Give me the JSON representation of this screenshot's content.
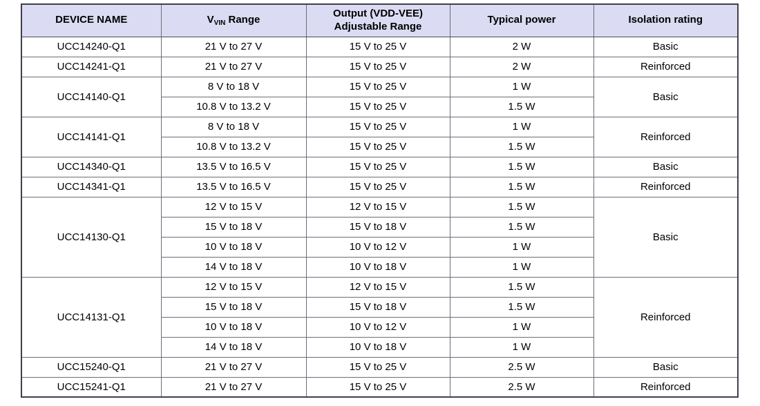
{
  "colors": {
    "header_bg": "#dbdbf3",
    "grid_line": "#6b6b78",
    "outer_border": "#3f3f4a",
    "text": "#000000"
  },
  "table": {
    "headers": {
      "device": "DEVICE NAME",
      "vvin_prefix": "V",
      "vvin_sub": "VIN",
      "vvin_suffix": " Range",
      "output_line1": "Output (VDD-VEE)",
      "output_line2": "Adjustable Range",
      "power": "Typical power",
      "isolation": "Isolation rating"
    },
    "groups": [
      {
        "device": "UCC14240-Q1",
        "isolation": "Basic",
        "rows": [
          {
            "vin": "21 V to 27 V",
            "out": "15 V to 25 V",
            "power": "2 W"
          }
        ]
      },
      {
        "device": "UCC14241-Q1",
        "isolation": "Reinforced",
        "rows": [
          {
            "vin": "21 V to 27 V",
            "out": "15 V to 25 V",
            "power": "2 W"
          }
        ]
      },
      {
        "device": "UCC14140-Q1",
        "isolation": "Basic",
        "rows": [
          {
            "vin": "8 V to 18 V",
            "out": "15 V to 25 V",
            "power": "1 W"
          },
          {
            "vin": "10.8 V to 13.2 V",
            "out": "15 V to 25 V",
            "power": "1.5 W"
          }
        ]
      },
      {
        "device": "UCC14141-Q1",
        "isolation": "Reinforced",
        "rows": [
          {
            "vin": "8 V to 18 V",
            "out": "15 V to 25 V",
            "power": "1 W"
          },
          {
            "vin": "10.8 V to 13.2 V",
            "out": "15 V to 25 V",
            "power": "1.5 W"
          }
        ]
      },
      {
        "device": "UCC14340-Q1",
        "isolation": "Basic",
        "rows": [
          {
            "vin": "13.5 V to 16.5 V",
            "out": "15 V to 25 V",
            "power": "1.5 W"
          }
        ]
      },
      {
        "device": "UCC14341-Q1",
        "isolation": "Reinforced",
        "rows": [
          {
            "vin": "13.5 V to 16.5 V",
            "out": "15 V to 25 V",
            "power": "1.5 W"
          }
        ]
      },
      {
        "device": "UCC14130-Q1",
        "isolation": "Basic",
        "rows": [
          {
            "vin": "12 V to 15 V",
            "out": "12 V to 15 V",
            "power": "1.5 W"
          },
          {
            "vin": "15 V to 18 V",
            "out": "15 V to 18 V",
            "power": "1.5 W"
          },
          {
            "vin": "10 V to 18 V",
            "out": "10 V to 12 V",
            "power": "1 W"
          },
          {
            "vin": "14 V to 18 V",
            "out": "10 V to 18 V",
            "power": "1 W"
          }
        ]
      },
      {
        "device": "UCC14131-Q1",
        "isolation": "Reinforced",
        "rows": [
          {
            "vin": "12 V to 15 V",
            "out": "12 V to 15 V",
            "power": "1.5 W"
          },
          {
            "vin": "15 V to 18 V",
            "out": "15 V to 18 V",
            "power": "1.5 W"
          },
          {
            "vin": "10 V to 18 V",
            "out": "10 V to 12 V",
            "power": "1 W"
          },
          {
            "vin": "14 V to 18 V",
            "out": "10 V to 18 V",
            "power": "1 W"
          }
        ]
      },
      {
        "device": "UCC15240-Q1",
        "isolation": "Basic",
        "rows": [
          {
            "vin": "21 V to 27 V",
            "out": "15 V to 25 V",
            "power": "2.5 W"
          }
        ]
      },
      {
        "device": "UCC15241-Q1",
        "isolation": "Reinforced",
        "rows": [
          {
            "vin": "21 V to 27 V",
            "out": "15 V to 25 V",
            "power": "2.5 W"
          }
        ]
      }
    ]
  }
}
